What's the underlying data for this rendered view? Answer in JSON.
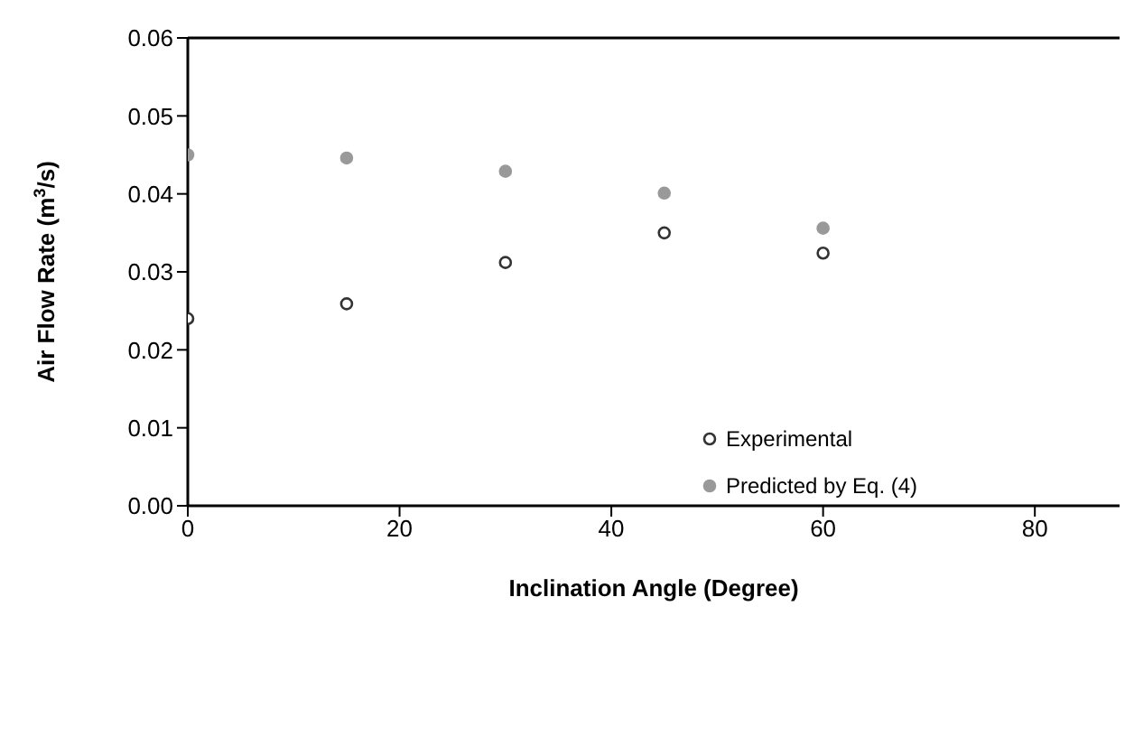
{
  "chart_data": {
    "type": "scatter",
    "xlabel": "Inclination Angle (Degree)",
    "ylabel": "Air Flow Rate (m$^{3}$/s)",
    "x": [
      0,
      15,
      30,
      45,
      60
    ],
    "series": [
      {
        "name": "Experimental",
        "color": "#333333",
        "values": [
          0.024,
          0.0259,
          0.0312,
          0.035,
          0.0324
        ],
        "marker": "circle"
      },
      {
        "name": "Predicted by Eq. (4)",
        "color": "#999999",
        "values": [
          0.045,
          0.0446,
          0.0429,
          0.0401,
          0.0356
        ],
        "marker": "circle"
      }
    ],
    "xlim": [
      0,
      88
    ],
    "xticks": [
      0,
      20,
      40,
      60,
      80
    ],
    "ylim": [
      0,
      0.06
    ],
    "yticks": [
      {
        "value": 0,
        "label": "0.00"
      },
      0.01,
      0.02,
      0.03,
      0.04,
      0.05,
      0.06
    ],
    "grid": false,
    "legend": "right"
  }
}
